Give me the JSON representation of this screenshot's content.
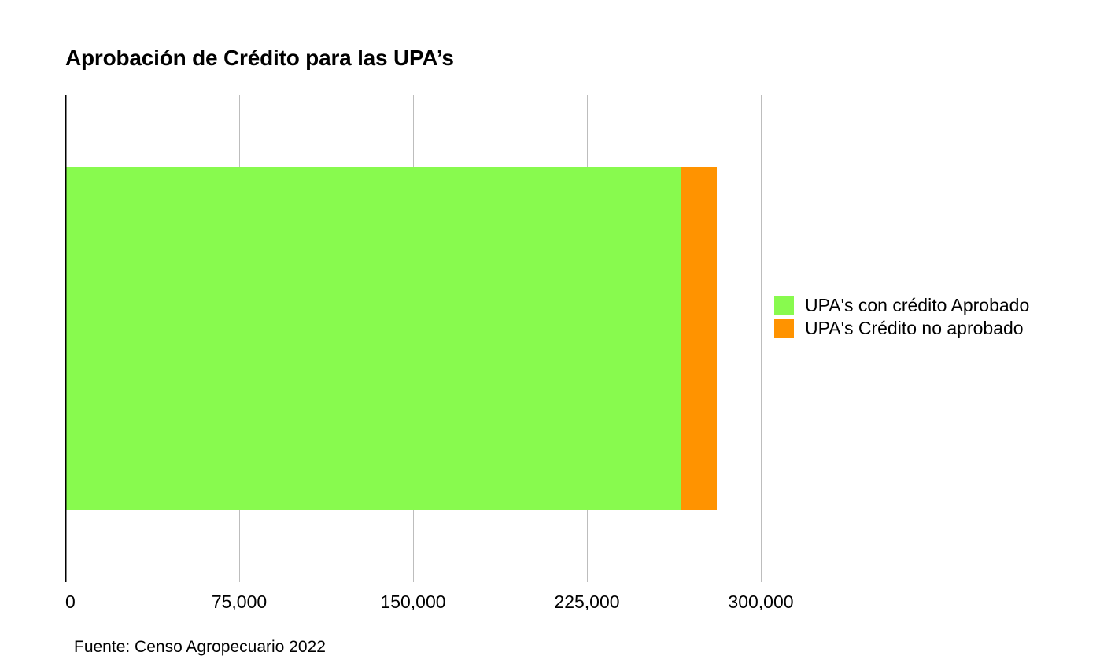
{
  "chart_data": {
    "type": "bar",
    "orientation": "horizontal",
    "stacked": true,
    "title": "Aprobación de Crédito para las UPA’s",
    "categories": [
      ""
    ],
    "series": [
      {
        "name": "UPA's con crédito Aprobado",
        "values": [
          265500
        ],
        "color": "#88FA4E"
      },
      {
        "name": "UPA's Crédito no aprobado",
        "values": [
          15500
        ],
        "color": "#FF9300"
      }
    ],
    "xlim": [
      0,
      300000
    ],
    "xticks": [
      0,
      75000,
      150000,
      225000,
      300000
    ],
    "xtick_labels": [
      "0",
      "75,000",
      "150,000",
      "225,000",
      "300,000"
    ],
    "xlabel": "",
    "ylabel": "",
    "grid": true,
    "legend_position": "right",
    "source": "Fuente: Censo Agropecuario 2022"
  }
}
